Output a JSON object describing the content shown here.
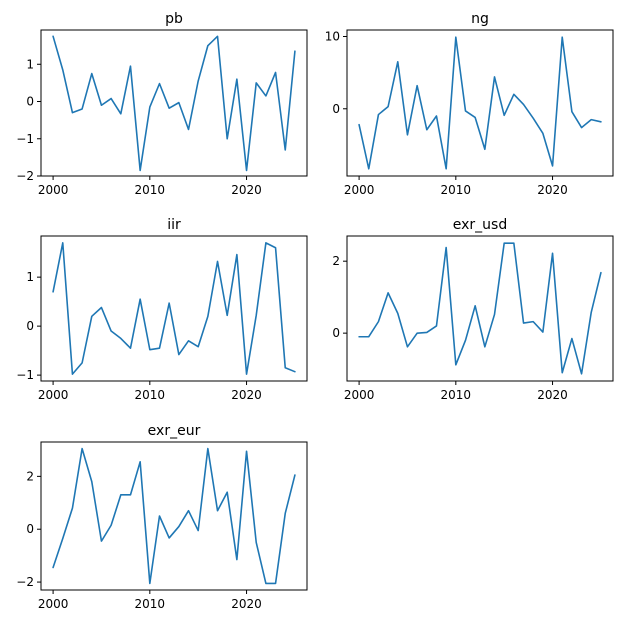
{
  "colors": {
    "series": "#1f77b4",
    "axes": "#000000",
    "background": "#ffffff"
  },
  "chart_data": [
    {
      "type": "line",
      "title": "pb",
      "x": [
        2000,
        2001,
        2002,
        2003,
        2004,
        2005,
        2006,
        2007,
        2008,
        2009,
        2010,
        2011,
        2012,
        2013,
        2014,
        2015,
        2016,
        2017,
        2018,
        2019,
        2020,
        2021,
        2022,
        2023,
        2024,
        2025
      ],
      "values": [
        1.75,
        0.85,
        -0.3,
        -0.2,
        0.75,
        -0.1,
        0.08,
        -0.33,
        0.95,
        -1.85,
        -0.15,
        0.48,
        -0.18,
        -0.03,
        -0.75,
        0.55,
        1.5,
        1.75,
        -1.0,
        0.6,
        -1.85,
        0.5,
        0.15,
        0.78,
        -1.3,
        1.35
      ],
      "xlim": [
        1998.75,
        2026.25
      ],
      "ylim": [
        -2.0,
        1.92
      ],
      "xticks": [
        2000,
        2010,
        2020
      ],
      "yticks": [
        -2,
        -1,
        0,
        1
      ]
    },
    {
      "type": "line",
      "title": "ng",
      "x": [
        2000,
        2001,
        2002,
        2003,
        2004,
        2005,
        2006,
        2007,
        2008,
        2009,
        2010,
        2011,
        2012,
        2013,
        2014,
        2015,
        2016,
        2017,
        2018,
        2019,
        2020,
        2021,
        2022,
        2023,
        2024,
        2025
      ],
      "values": [
        -2.2,
        -8.3,
        -0.8,
        0.3,
        6.5,
        -3.6,
        3.2,
        -2.9,
        -1.0,
        -8.3,
        9.9,
        -0.3,
        -1.2,
        -5.6,
        4.4,
        -0.9,
        2.0,
        0.6,
        -1.3,
        -3.4,
        -7.9,
        9.9,
        -0.4,
        -2.6,
        -1.5,
        -1.8
      ],
      "xlim": [
        1998.75,
        2026.25
      ],
      "ylim": [
        -9.3,
        10.9
      ],
      "xticks": [
        2000,
        2010,
        2020
      ],
      "yticks": [
        0,
        10
      ]
    },
    {
      "type": "line",
      "title": "iir",
      "x": [
        2000,
        2001,
        2002,
        2003,
        2004,
        2005,
        2006,
        2007,
        2008,
        2009,
        2010,
        2011,
        2012,
        2013,
        2014,
        2015,
        2016,
        2017,
        2018,
        2019,
        2020,
        2021,
        2022,
        2023,
        2024,
        2025
      ],
      "values": [
        0.7,
        1.7,
        -0.98,
        -0.75,
        0.2,
        0.38,
        -0.1,
        -0.25,
        -0.45,
        0.55,
        -0.48,
        -0.45,
        0.47,
        -0.58,
        -0.3,
        -0.42,
        0.2,
        1.32,
        0.22,
        1.46,
        -0.98,
        0.22,
        1.7,
        1.6,
        -0.85,
        -0.93
      ],
      "xlim": [
        1998.75,
        2026.25
      ],
      "ylim": [
        -1.12,
        1.84
      ],
      "xticks": [
        2000,
        2010,
        2020
      ],
      "yticks": [
        -1,
        0,
        1
      ]
    },
    {
      "type": "line",
      "title": "exr_usd",
      "x": [
        2000,
        2001,
        2002,
        2003,
        2004,
        2005,
        2006,
        2007,
        2008,
        2009,
        2010,
        2011,
        2012,
        2013,
        2014,
        2015,
        2016,
        2017,
        2018,
        2019,
        2020,
        2021,
        2022,
        2023,
        2024,
        2025
      ],
      "values": [
        -0.1,
        -0.1,
        0.32,
        1.12,
        0.55,
        -0.38,
        0.0,
        0.02,
        0.2,
        2.38,
        -0.88,
        -0.2,
        0.76,
        -0.38,
        0.52,
        2.5,
        2.5,
        0.28,
        0.32,
        0.03,
        2.22,
        -1.1,
        -0.15,
        -1.13,
        0.58,
        1.68
      ],
      "xlim": [
        1998.75,
        2026.25
      ],
      "ylim": [
        -1.33,
        2.7
      ],
      "xticks": [
        2000,
        2010,
        2020
      ],
      "yticks": [
        0,
        2
      ]
    },
    {
      "type": "line",
      "title": "exr_eur",
      "x": [
        2000,
        2001,
        2002,
        2003,
        2004,
        2005,
        2006,
        2007,
        2008,
        2009,
        2010,
        2011,
        2012,
        2013,
        2014,
        2015,
        2016,
        2017,
        2018,
        2019,
        2020,
        2021,
        2022,
        2023,
        2024,
        2025
      ],
      "values": [
        -1.45,
        -0.35,
        0.8,
        3.05,
        1.8,
        -0.45,
        0.15,
        1.3,
        1.3,
        2.55,
        -2.05,
        0.5,
        -0.33,
        0.1,
        0.7,
        -0.05,
        3.05,
        0.7,
        1.4,
        -1.15,
        2.95,
        -0.5,
        -2.05,
        -2.05,
        0.6,
        2.05
      ],
      "xlim": [
        1998.75,
        2026.25
      ],
      "ylim": [
        -2.3,
        3.3
      ],
      "xticks": [
        2000,
        2010,
        2020
      ],
      "yticks": [
        -2,
        0,
        2
      ]
    }
  ]
}
